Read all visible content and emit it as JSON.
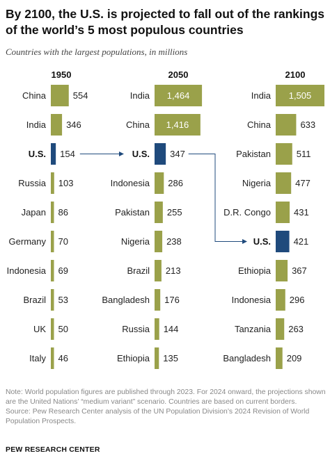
{
  "title": "By 2100, the U.S. is projected to fall out of the rankings of the world’s 5 most populous countries",
  "subtitle": "Countries with the largest populations, in millions",
  "note": "Note: World population figures are published through 2023. For 2024 onward, the projections shown are the United Nations’ “medium variant” scenario. Countries are based on current borders.",
  "source": "Source: Pew Research Center analysis of the UN Population Division’s 2024 Revision of World Population Prospects.",
  "brand": "PEW RESEARCH CENTER",
  "colors": {
    "bar": "#9aa14a",
    "highlight": "#1f4a7c",
    "text": "#222222",
    "on_bar_text": "#ffffff",
    "arrow": "#1f4a7c"
  },
  "chart_data": {
    "type": "bar",
    "orientation": "horizontal",
    "unit": "millions",
    "highlight": "U.S.",
    "panels": [
      {
        "year": "1950",
        "categories": [
          "China",
          "India",
          "U.S.",
          "Russia",
          "Japan",
          "Germany",
          "Indonesia",
          "Brazil",
          "UK",
          "Italy"
        ],
        "values": [
          554,
          346,
          154,
          103,
          86,
          70,
          69,
          53,
          50,
          46
        ]
      },
      {
        "year": "2050",
        "categories": [
          "India",
          "China",
          "U.S.",
          "Indonesia",
          "Pakistan",
          "Nigeria",
          "Brazil",
          "Bangladesh",
          "Russia",
          "Ethiopia"
        ],
        "values": [
          1464,
          1416,
          347,
          286,
          255,
          238,
          213,
          176,
          144,
          135
        ]
      },
      {
        "year": "2100",
        "categories": [
          "India",
          "China",
          "Pakistan",
          "Nigeria",
          "D.R. Congo",
          "U.S.",
          "Ethiopia",
          "Indonesia",
          "Tanzania",
          "Bangladesh"
        ],
        "values": [
          1505,
          633,
          511,
          477,
          431,
          421,
          367,
          296,
          263,
          209
        ]
      }
    ]
  }
}
